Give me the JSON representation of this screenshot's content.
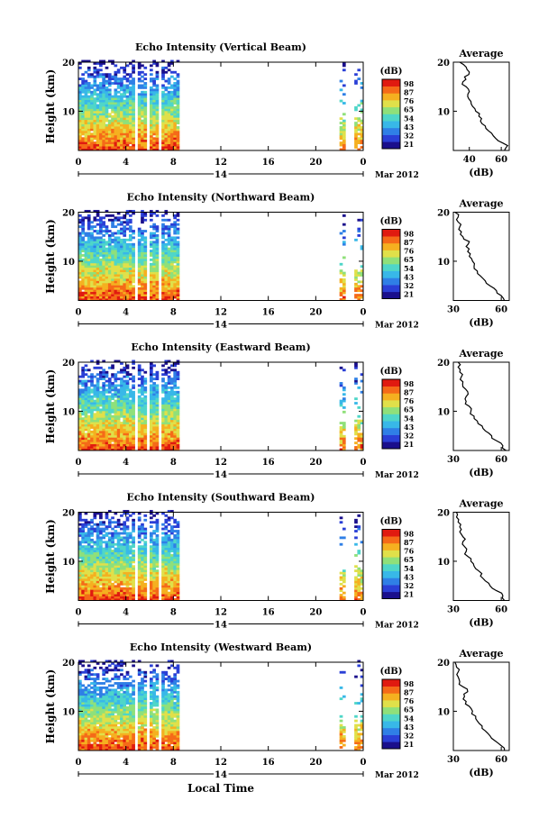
{
  "figure": {
    "x_ticks": [
      "0",
      "4",
      "8",
      "12",
      "16",
      "20",
      "0"
    ],
    "date_label": "14",
    "month_label": "Mar 2012",
    "xlabel": "Local Time",
    "ylabel": "Height (km)",
    "colorbar_unit": "(dB)",
    "colorbar_ticks": [
      "21",
      "32",
      "43",
      "54",
      "65",
      "76",
      "87",
      "98"
    ],
    "avg_title": "Average",
    "avg_xlabel": "(dB)",
    "colormap": [
      "#1a0f8c",
      "#2a3fd6",
      "#2f7fe6",
      "#38b8e8",
      "#4fd6c8",
      "#8fe07a",
      "#e0e04a",
      "#f5b020",
      "#f56a18",
      "#e01a10"
    ]
  },
  "chart_data": [
    {
      "type": "heatmap",
      "title": "Echo Intensity (Vertical Beam)",
      "xlabel": "Local Time",
      "ylabel": "Height (km)",
      "xlim": [
        0,
        24
      ],
      "ylim": [
        2,
        20
      ],
      "yticks": [
        10,
        20
      ],
      "data_gaps_hours": [
        [
          4.7,
          4.9
        ],
        [
          5.7,
          5.9
        ],
        [
          6.6,
          6.8
        ],
        [
          8.4,
          21.8
        ],
        [
          22.4,
          23.1
        ]
      ],
      "colorbar": {
        "label": "(dB)",
        "ticks": [
          21,
          32,
          43,
          54,
          65,
          76,
          87,
          98
        ]
      },
      "average_profile": {
        "title": "Average",
        "xlabel": "(dB)",
        "xticks": [
          40,
          60
        ],
        "xlim": [
          30,
          65
        ],
        "height_km": [
          2,
          3,
          4,
          5,
          6,
          7,
          8,
          9,
          10,
          11,
          12,
          13,
          14,
          15,
          16,
          17,
          18,
          19,
          20
        ],
        "values_db": [
          62,
          64,
          58,
          55,
          52,
          50,
          47,
          46,
          44,
          42,
          41,
          39,
          40,
          38,
          36,
          37,
          40,
          38,
          34
        ]
      }
    },
    {
      "type": "heatmap",
      "title": "Echo Intensity (Northward Beam)",
      "xlabel": "Local Time",
      "ylabel": "Height (km)",
      "xlim": [
        0,
        24
      ],
      "ylim": [
        2,
        20
      ],
      "yticks": [
        10,
        20
      ],
      "data_gaps_hours": [
        [
          4.7,
          4.9
        ],
        [
          5.7,
          5.9
        ],
        [
          6.6,
          6.8
        ],
        [
          8.4,
          21.8
        ],
        [
          22.4,
          23.1
        ]
      ],
      "colorbar": {
        "label": "(dB)",
        "ticks": [
          21,
          32,
          43,
          54,
          65,
          76,
          87,
          98
        ]
      },
      "average_profile": {
        "title": "Average",
        "xlabel": "(dB)",
        "xticks": [
          30,
          60
        ],
        "xlim": [
          30,
          65
        ],
        "height_km": [
          2,
          3,
          4,
          5,
          6,
          7,
          8,
          9,
          10,
          11,
          12,
          13,
          14,
          15,
          16,
          17,
          18,
          19,
          20
        ],
        "values_db": [
          62,
          60,
          57,
          53,
          50,
          47,
          45,
          43,
          42,
          40,
          39,
          38,
          40,
          36,
          35,
          34,
          33,
          33,
          31
        ]
      }
    },
    {
      "type": "heatmap",
      "title": "Echo Intensity (Eastward Beam)",
      "xlabel": "Local Time",
      "ylabel": "Height (km)",
      "xlim": [
        0,
        24
      ],
      "ylim": [
        2,
        20
      ],
      "yticks": [
        10,
        20
      ],
      "data_gaps_hours": [
        [
          4.7,
          4.9
        ],
        [
          5.7,
          5.9
        ],
        [
          6.6,
          6.8
        ],
        [
          8.4,
          21.8
        ],
        [
          22.4,
          23.1
        ]
      ],
      "colorbar": {
        "label": "(dB)",
        "ticks": [
          21,
          32,
          43,
          54,
          65,
          76,
          87,
          98
        ]
      },
      "average_profile": {
        "title": "Average",
        "xlabel": "(dB)",
        "xticks": [
          30,
          60
        ],
        "xlim": [
          30,
          65
        ],
        "height_km": [
          2,
          3,
          4,
          5,
          6,
          7,
          8,
          9,
          10,
          11,
          12,
          13,
          14,
          15,
          16,
          17,
          18,
          19,
          20
        ],
        "values_db": [
          63,
          61,
          57,
          54,
          50,
          48,
          45,
          43,
          41,
          40,
          38,
          38,
          39,
          36,
          36,
          35,
          34,
          33,
          33
        ]
      }
    },
    {
      "type": "heatmap",
      "title": "Echo Intensity (Southward Beam)",
      "xlabel": "Local Time",
      "ylabel": "Height (km)",
      "xlim": [
        0,
        24
      ],
      "ylim": [
        2,
        20
      ],
      "yticks": [
        10,
        20
      ],
      "data_gaps_hours": [
        [
          4.7,
          4.9
        ],
        [
          5.7,
          5.9
        ],
        [
          6.6,
          6.8
        ],
        [
          8.4,
          21.8
        ],
        [
          22.4,
          23.1
        ]
      ],
      "colorbar": {
        "label": "(dB)",
        "ticks": [
          21,
          32,
          43,
          54,
          65,
          76,
          87,
          98
        ]
      },
      "average_profile": {
        "title": "Average",
        "xlabel": "(dB)",
        "xticks": [
          30,
          60
        ],
        "xlim": [
          30,
          65
        ],
        "height_km": [
          2,
          3,
          4,
          5,
          6,
          7,
          8,
          9,
          10,
          11,
          12,
          13,
          14,
          15,
          16,
          17,
          18,
          19,
          20
        ],
        "values_db": [
          62,
          61,
          57,
          53,
          50,
          47,
          46,
          43,
          41,
          39,
          38,
          37,
          36,
          36,
          34,
          34,
          33,
          32,
          32
        ]
      }
    },
    {
      "type": "heatmap",
      "title": "Echo Intensity (Westward Beam)",
      "xlabel": "Local Time",
      "ylabel": "Height (km)",
      "xlim": [
        0,
        24
      ],
      "ylim": [
        2,
        20
      ],
      "yticks": [
        10,
        20
      ],
      "data_gaps_hours": [
        [
          4.7,
          4.9
        ],
        [
          5.7,
          5.9
        ],
        [
          6.6,
          6.8
        ],
        [
          8.4,
          21.8
        ],
        [
          22.4,
          23.1
        ]
      ],
      "colorbar": {
        "label": "(dB)",
        "ticks": [
          21,
          32,
          43,
          54,
          65,
          76,
          87,
          98
        ]
      },
      "average_profile": {
        "title": "Average",
        "xlabel": "(dB)",
        "xticks": [
          30,
          60
        ],
        "xlim": [
          30,
          65
        ],
        "height_km": [
          2,
          3,
          4,
          5,
          6,
          7,
          8,
          9,
          10,
          11,
          12,
          13,
          14,
          15,
          16,
          17,
          18,
          19,
          20
        ],
        "values_db": [
          62,
          60,
          56,
          53,
          50,
          48,
          45,
          44,
          42,
          40,
          38,
          37,
          39,
          36,
          34,
          33,
          33,
          32,
          31
        ]
      }
    }
  ]
}
